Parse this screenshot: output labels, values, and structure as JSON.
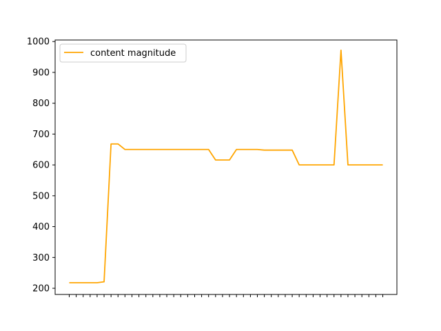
{
  "chart_data": {
    "type": "line",
    "title": "",
    "xlabel": "",
    "ylabel": "",
    "ylim": [
      180,
      1005
    ],
    "yticks": [
      200,
      300,
      400,
      500,
      600,
      700,
      800,
      900,
      1000
    ],
    "x": [
      0,
      1,
      2,
      3,
      4,
      5,
      6,
      7,
      8,
      9,
      10,
      11,
      12,
      13,
      14,
      15,
      16,
      17,
      18,
      19,
      20,
      21,
      22,
      23,
      24,
      25,
      26,
      27,
      28,
      29,
      30,
      31,
      32,
      33,
      34,
      35,
      36,
      37,
      38,
      39,
      40,
      41,
      42,
      43,
      44,
      45
    ],
    "xtick_labels_visible": false,
    "legend": {
      "position": "top-left"
    },
    "grid": false,
    "series": [
      {
        "name": "content magnitude",
        "color": "#FFA500",
        "values": [
          218,
          218,
          218,
          218,
          218,
          221,
          668,
          668,
          650,
          650,
          650,
          650,
          650,
          650,
          650,
          650,
          650,
          650,
          650,
          650,
          650,
          616,
          616,
          616,
          650,
          650,
          650,
          650,
          648,
          648,
          648,
          648,
          648,
          600,
          600,
          600,
          600,
          600,
          600,
          972,
          600,
          600,
          600,
          600,
          600,
          600
        ]
      }
    ]
  }
}
